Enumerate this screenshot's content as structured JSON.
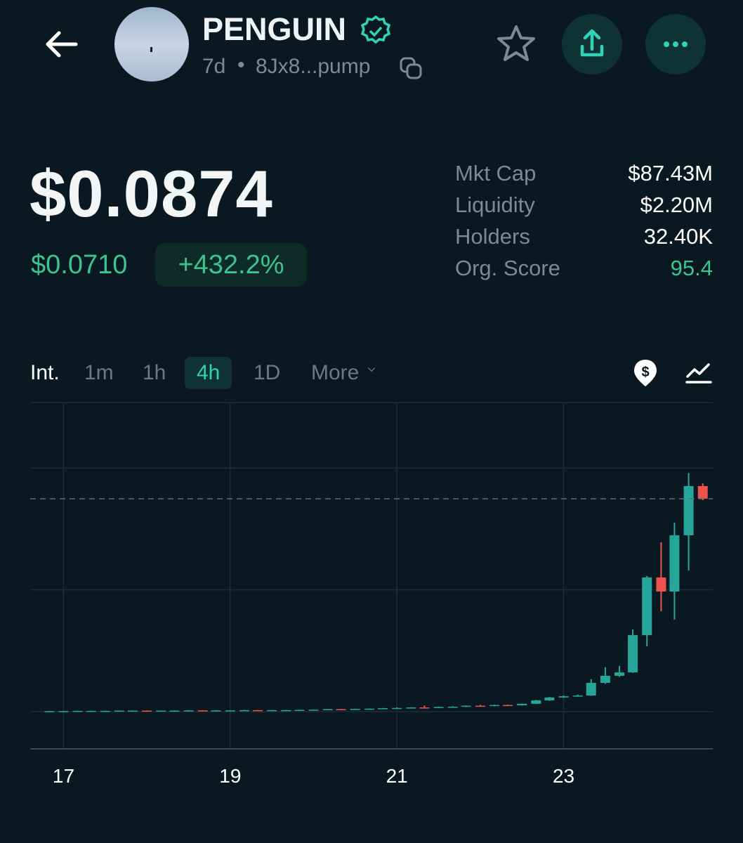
{
  "header": {
    "title": "PENGUIN",
    "age": "7d",
    "address": "8Jx8...pump"
  },
  "price": {
    "current": "$0.0874",
    "change": "$0.0710",
    "change_percent": "+432.2%"
  },
  "stats": [
    {
      "label": "Mkt Cap",
      "value": "$87.43M"
    },
    {
      "label": "Liquidity",
      "value": "$2.20M"
    },
    {
      "label": "Holders",
      "value": "32.40K"
    },
    {
      "label": "Org. Score",
      "value": "95.4"
    }
  ],
  "intervals": {
    "label": "Int.",
    "options": [
      "1m",
      "1h",
      "4h",
      "1D",
      "More"
    ],
    "selected": 2
  },
  "chart_data": {
    "type": "candlestick",
    "x": [
      16.83,
      17,
      17.17,
      17.33,
      17.5,
      17.67,
      17.83,
      18,
      18.17,
      18.33,
      18.5,
      18.67,
      18.83,
      19,
      19.17,
      19.33,
      19.5,
      19.67,
      19.83,
      20,
      20.17,
      20.33,
      20.5,
      20.67,
      20.83,
      21,
      21.17,
      21.33,
      21.5,
      21.67,
      21.83,
      22,
      22.17,
      22.33,
      22.5,
      22.67,
      22.83,
      23,
      23.17,
      23.33,
      23.5,
      23.67,
      23.83,
      24,
      24.17,
      24.33,
      24.5,
      24.67
    ],
    "open": [
      0.0001,
      0.0002,
      0.0002,
      0.0003,
      0.0003,
      0.0003,
      0.0004,
      0.0004,
      0.0003,
      0.0004,
      0.0004,
      0.0005,
      0.0004,
      0.0005,
      0.0005,
      0.0006,
      0.0005,
      0.0006,
      0.0006,
      0.0007,
      0.0008,
      0.001,
      0.0009,
      0.0011,
      0.0012,
      0.0014,
      0.0015,
      0.0017,
      0.0016,
      0.0019,
      0.002,
      0.0024,
      0.0023,
      0.0027,
      0.0026,
      0.0032,
      0.0046,
      0.0058,
      0.0063,
      0.0066,
      0.0118,
      0.0147,
      0.0161,
      0.0314,
      0.0551,
      0.0493,
      0.0724,
      0.0926
    ],
    "high": [
      0.0003,
      0.0003,
      0.0004,
      0.0004,
      0.0004,
      0.0005,
      0.0005,
      0.0005,
      0.0005,
      0.0005,
      0.0006,
      0.0006,
      0.0006,
      0.0006,
      0.0007,
      0.0007,
      0.0007,
      0.0007,
      0.0008,
      0.0009,
      0.0011,
      0.0011,
      0.0012,
      0.0013,
      0.0015,
      0.0017,
      0.0018,
      0.0025,
      0.002,
      0.0022,
      0.0025,
      0.0028,
      0.0028,
      0.0029,
      0.0033,
      0.0048,
      0.006,
      0.0066,
      0.007,
      0.0133,
      0.0182,
      0.0188,
      0.0337,
      0.0557,
      0.0695,
      0.0776,
      0.098,
      0.0937
    ],
    "low": [
      0.0001,
      0.0001,
      0.0002,
      0.0002,
      0.0002,
      0.0003,
      0.0003,
      0.0003,
      0.0003,
      0.0003,
      0.0004,
      0.0004,
      0.0004,
      0.0004,
      0.0005,
      0.0005,
      0.0005,
      0.0005,
      0.0006,
      0.0007,
      0.0008,
      0.0008,
      0.0009,
      0.001,
      0.0012,
      0.0013,
      0.0014,
      0.0015,
      0.0015,
      0.0018,
      0.0019,
      0.0022,
      0.0022,
      0.0025,
      0.0025,
      0.0031,
      0.0044,
      0.0056,
      0.0061,
      0.0064,
      0.0114,
      0.0143,
      0.0159,
      0.0268,
      0.0412,
      0.0378,
      0.0579,
      0.0868
    ],
    "close": [
      0.0002,
      0.0002,
      0.0003,
      0.0003,
      0.0003,
      0.0004,
      0.0004,
      0.0003,
      0.0004,
      0.0004,
      0.0005,
      0.0004,
      0.0005,
      0.0005,
      0.0006,
      0.0005,
      0.0006,
      0.0006,
      0.0007,
      0.0008,
      0.001,
      0.0009,
      0.0011,
      0.0012,
      0.0014,
      0.0015,
      0.0017,
      0.0016,
      0.0019,
      0.002,
      0.0024,
      0.0023,
      0.0027,
      0.0026,
      0.0032,
      0.0046,
      0.0058,
      0.0063,
      0.0066,
      0.0118,
      0.0147,
      0.0161,
      0.0314,
      0.0551,
      0.0493,
      0.0724,
      0.0926,
      0.0874
    ],
    "xlim": [
      16.6,
      24.79
    ],
    "xticks": [
      17,
      19,
      21,
      23
    ],
    "ylim": [
      -0.0153,
      0.1269
    ],
    "ygrid": [
      0,
      0.05,
      0.1
    ],
    "grid": true,
    "up_color": "#26a69a",
    "down_color": "#ef5350",
    "last_price_line": true
  }
}
